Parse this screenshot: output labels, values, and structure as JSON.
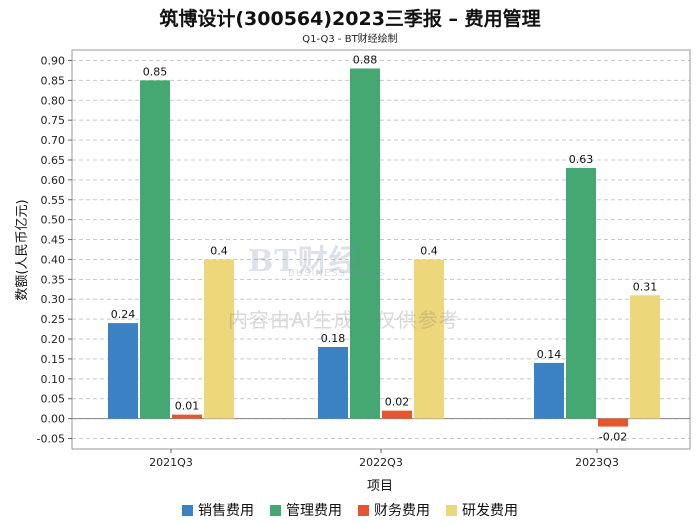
{
  "chart_data": {
    "type": "bar",
    "title": "筑博设计(300564)2023三季报 – 费用管理",
    "subtitle": "Q1-Q3 - BT财经绘制",
    "xlabel": "项目",
    "ylabel": "数额(人民币亿元)",
    "ylim": [
      -0.05,
      0.9
    ],
    "yticks": [
      "0.90",
      "0.85",
      "0.80",
      "0.75",
      "0.70",
      "0.65",
      "0.60",
      "0.55",
      "0.50",
      "0.45",
      "0.40",
      "0.35",
      "0.30",
      "0.25",
      "0.20",
      "0.15",
      "0.10",
      "0.05",
      "0.00",
      "-0.05"
    ],
    "grid": true,
    "legend_position": "bottom",
    "categories": [
      "2021Q3",
      "2022Q3",
      "2023Q3"
    ],
    "series": [
      {
        "name": "销售费用",
        "color": "#3a82c4",
        "values": [
          0.24,
          0.18,
          0.14
        ],
        "labels": [
          "0.24",
          "0.18",
          "0.14"
        ]
      },
      {
        "name": "管理费用",
        "color": "#45a873",
        "values": [
          0.85,
          0.88,
          0.63
        ],
        "labels": [
          "0.85",
          "0.88",
          "0.63"
        ]
      },
      {
        "name": "财务费用",
        "color": "#e4572e",
        "values": [
          0.01,
          0.02,
          -0.02
        ],
        "labels": [
          "0.01",
          "0.02",
          "-0.02"
        ]
      },
      {
        "name": "研发费用",
        "color": "#ecd77a",
        "values": [
          0.4,
          0.4,
          0.31
        ],
        "labels": [
          "0.4",
          "0.4",
          "0.31"
        ]
      }
    ]
  },
  "watermark": {
    "logo": "BT财经",
    "logo_sub": "BUSINESS TIMES",
    "text": "内容由AI生成，仅供参考"
  }
}
